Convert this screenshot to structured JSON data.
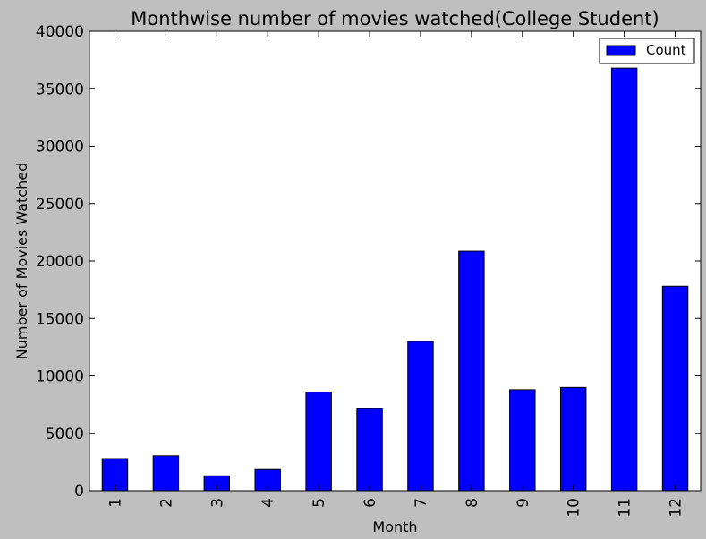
{
  "chart_data": {
    "type": "bar",
    "title": "Monthwise number of movies watched(College Student)",
    "xlabel": "Month",
    "ylabel": "Number of Movies Watched",
    "categories": [
      "1",
      "2",
      "3",
      "4",
      "5",
      "6",
      "7",
      "8",
      "9",
      "10",
      "11",
      "12"
    ],
    "series": [
      {
        "name": "Count",
        "color": "#0000ff",
        "values": [
          2800,
          3050,
          1300,
          1850,
          8600,
          7150,
          13000,
          20850,
          8800,
          9000,
          36800,
          17800
        ]
      }
    ],
    "ylim": [
      0,
      40000
    ],
    "yticks": [
      0,
      5000,
      10000,
      15000,
      20000,
      25000,
      30000,
      35000,
      40000
    ],
    "grid": false,
    "legend_position": "top-right",
    "colors": {
      "background": "#bfbfbf",
      "plot_background": "#ffffff",
      "bar": "#0000ff"
    }
  }
}
